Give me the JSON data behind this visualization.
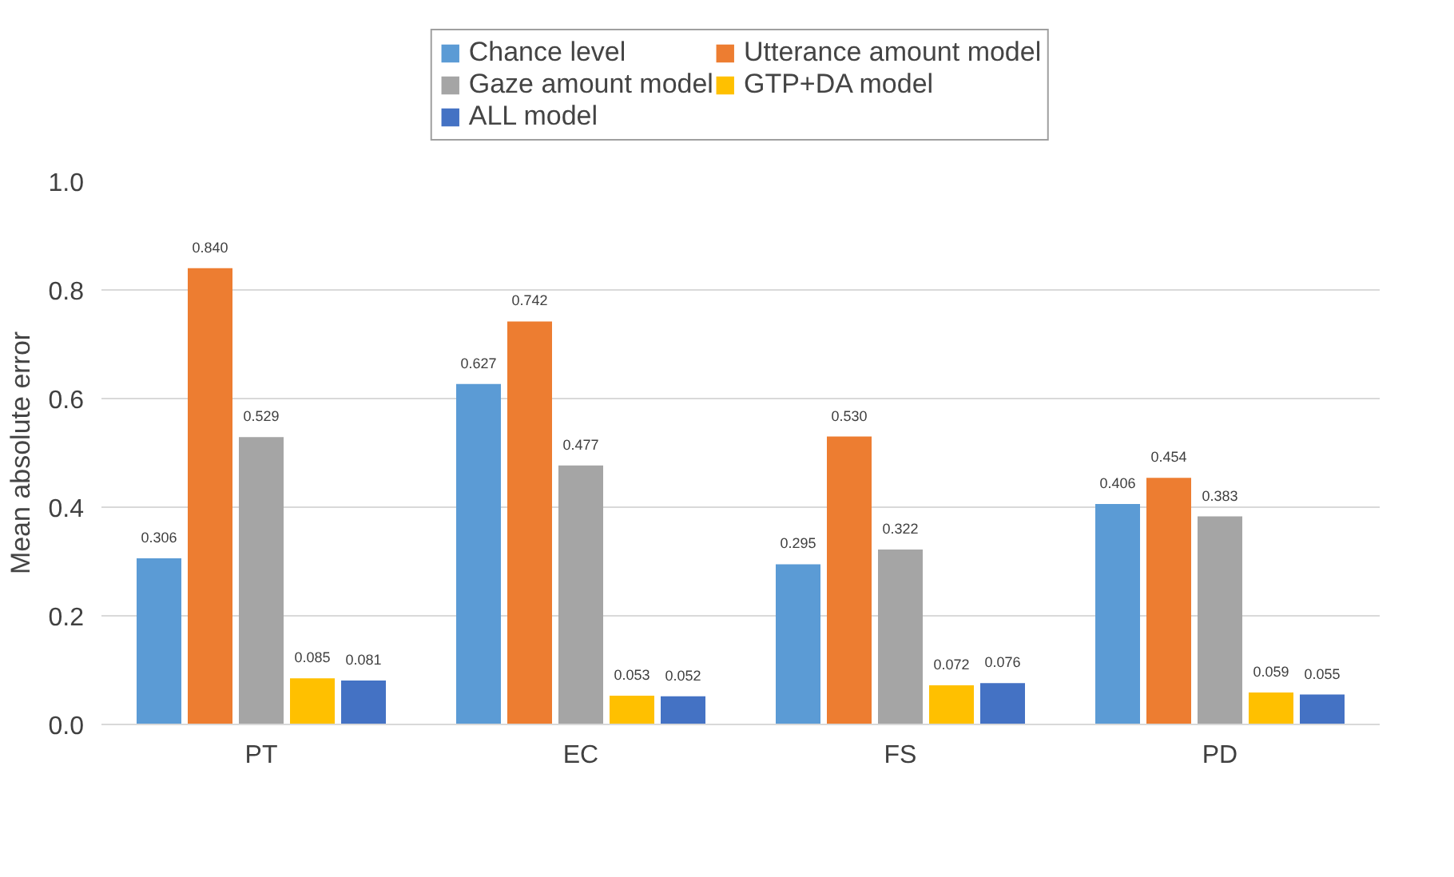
{
  "chart_data": {
    "type": "bar",
    "ylabel": "Mean absolute error",
    "categories": [
      "PT",
      "EC",
      "FS",
      "PD"
    ],
    "series": [
      {
        "name": "Chance level",
        "color": "#5b9bd5",
        "values": [
          0.306,
          0.627,
          0.295,
          0.406
        ]
      },
      {
        "name": "Utterance amount model",
        "color": "#ed7d31",
        "values": [
          0.84,
          0.742,
          0.53,
          0.454
        ]
      },
      {
        "name": "Gaze amount model",
        "color": "#a5a5a5",
        "values": [
          0.529,
          0.477,
          0.322,
          0.383
        ]
      },
      {
        "name": "GTP+DA model",
        "color": "#ffc000",
        "values": [
          0.085,
          0.053,
          0.072,
          0.059
        ]
      },
      {
        "name": "ALL model",
        "color": "#4472c4",
        "values": [
          0.081,
          0.052,
          0.076,
          0.055
        ]
      }
    ],
    "value_labels": [
      [
        "0.306",
        "0.627",
        "0.295",
        "0.406"
      ],
      [
        "0.840",
        "0.742",
        "0.530",
        "0.454"
      ],
      [
        "0.529",
        "0.477",
        "0.322",
        "0.383"
      ],
      [
        "0.085",
        "0.053",
        "0.072",
        "0.059"
      ],
      [
        "0.081",
        "0.052",
        "0.076",
        "0.055"
      ]
    ],
    "ylim": [
      0,
      1.0
    ],
    "yticks": [
      {
        "value": 0,
        "label": "0.0"
      },
      {
        "value": 0.2,
        "label": "0.2"
      },
      {
        "value": 0.4,
        "label": "0.4"
      },
      {
        "value": 0.6,
        "label": "0.6"
      },
      {
        "value": 0.8,
        "label": "0.8"
      },
      {
        "value": 1.0,
        "label": "1.0"
      }
    ],
    "grid": "y",
    "legend": "top"
  }
}
